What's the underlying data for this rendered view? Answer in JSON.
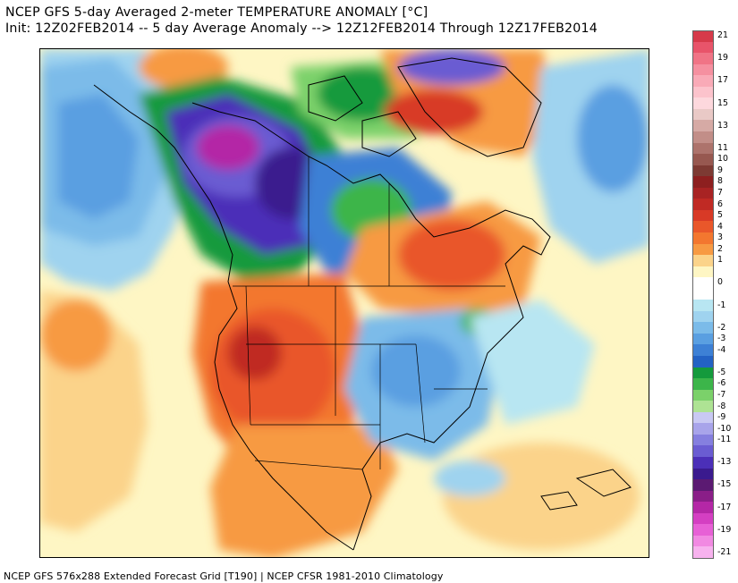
{
  "header": {
    "title": "NCEP GFS 5-day Averaged 2-meter TEMPERATURE ANOMALY [°C]",
    "subtitle": "Init: 12Z02FEB2014 -- 5 day Average Anomaly --> 12Z12FEB2014 Through 12Z17FEB2014"
  },
  "footer": {
    "text": "NCEP GFS 576x288 Extended Forecast Grid [T190] | NCEP CFSR 1981-2010 Climatology"
  },
  "colorbar": {
    "levels": [
      {
        "value": "21",
        "color": "#d63a4a"
      },
      {
        "value": "20",
        "color": "#e8546a"
      },
      {
        "value": "19",
        "color": "#f07486"
      },
      {
        "value": "18",
        "color": "#f590a0"
      },
      {
        "value": "17",
        "color": "#f9aab7"
      },
      {
        "value": "16",
        "color": "#fcc3cc"
      },
      {
        "value": "15",
        "color": "#fdd8dd"
      },
      {
        "value": "14",
        "color": "#e9c9c6"
      },
      {
        "value": "13",
        "color": "#d6aaa5"
      },
      {
        "value": "12",
        "color": "#c28e88"
      },
      {
        "value": "11",
        "color": "#ad736c"
      },
      {
        "value": "10",
        "color": "#975850"
      },
      {
        "value": "9",
        "color": "#7d3a33"
      },
      {
        "value": "8",
        "color": "#8d1f1f"
      },
      {
        "value": "7",
        "color": "#a82323"
      },
      {
        "value": "6",
        "color": "#c02a24"
      },
      {
        "value": "5",
        "color": "#d83a26"
      },
      {
        "value": "4",
        "color": "#e9572a"
      },
      {
        "value": "3",
        "color": "#f3772f"
      },
      {
        "value": "2",
        "color": "#f79a43"
      },
      {
        "value": "1",
        "color": "#fbd38a"
      },
      {
        "value": "0.5",
        "color": "#fef6c4"
      },
      {
        "value": "0",
        "color": "#ffffff"
      },
      {
        "value": "-0.5",
        "color": "#ffffff"
      },
      {
        "value": "-1",
        "color": "#b8e6f2"
      },
      {
        "value": "-1.5",
        "color": "#9fd3ef"
      },
      {
        "value": "-2",
        "color": "#7bbbe9"
      },
      {
        "value": "-3",
        "color": "#5a9fe1"
      },
      {
        "value": "-4",
        "color": "#3d80d5"
      },
      {
        "value": "-4.5",
        "color": "#2362c4"
      },
      {
        "value": "-5",
        "color": "#149a3c"
      },
      {
        "value": "-6",
        "color": "#3cb54a"
      },
      {
        "value": "-7",
        "color": "#7bd16a"
      },
      {
        "value": "-8",
        "color": "#aee394"
      },
      {
        "value": "-9",
        "color": "#c9c9f3"
      },
      {
        "value": "-10",
        "color": "#a8a4ea"
      },
      {
        "value": "-11",
        "color": "#857fdf"
      },
      {
        "value": "-12",
        "color": "#6a5cd2"
      },
      {
        "value": "-13",
        "color": "#4b2fb8"
      },
      {
        "value": "-14",
        "color": "#3a1a8e"
      },
      {
        "value": "-15",
        "color": "#5b1a72"
      },
      {
        "value": "-16",
        "color": "#8a1e88"
      },
      {
        "value": "-17",
        "color": "#b427a6"
      },
      {
        "value": "-18",
        "color": "#d43fc2"
      },
      {
        "value": "-19",
        "color": "#e760d6"
      },
      {
        "value": "-20",
        "color": "#f189e2"
      },
      {
        "value": "-21",
        "color": "#f7b2ee"
      }
    ],
    "printed_labels": [
      "21",
      "19",
      "17",
      "15",
      "13",
      "11",
      "10",
      "9",
      "8",
      "7",
      "6",
      "5",
      "4",
      "3",
      "2",
      "1",
      "0",
      "-1",
      "-2",
      "-3",
      "-4",
      "-5",
      "-6",
      "-7",
      "-8",
      "-9",
      "-10",
      "-11",
      "-13",
      "-15",
      "-17",
      "-19",
      "-21"
    ]
  }
}
